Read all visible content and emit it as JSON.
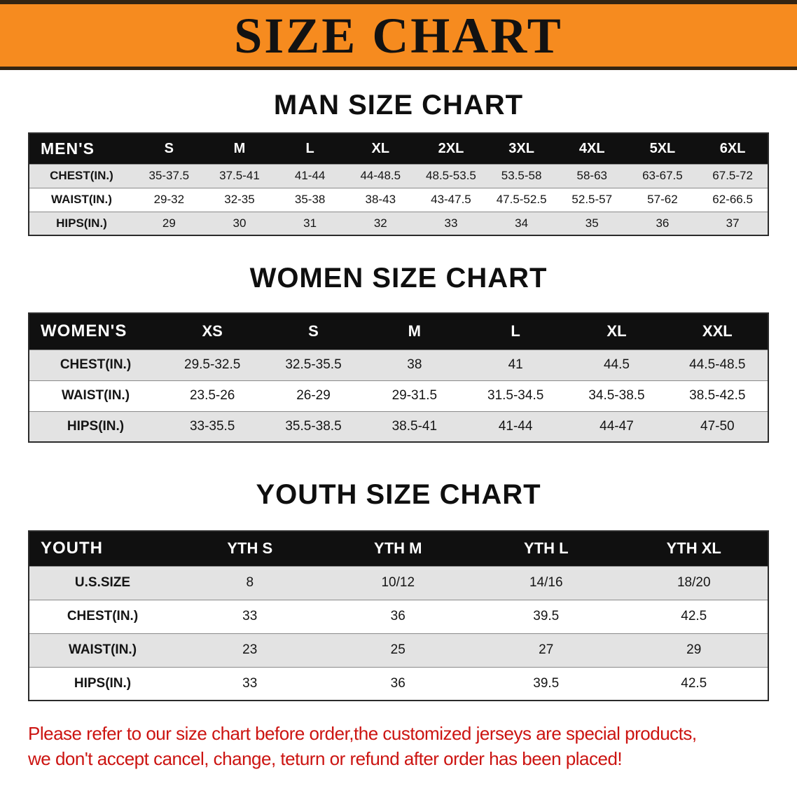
{
  "banner": {
    "title": "SIZE CHART"
  },
  "colors": {
    "banner_bg": "#f68b1f",
    "banner_border": "#332412",
    "table_header_bg": "#101010",
    "row_stripe": "#e3e3e3",
    "disclaimer_text": "#cc1411"
  },
  "sections": [
    {
      "heading": "MAN SIZE CHART",
      "table": {
        "header": [
          "MEN'S",
          "S",
          "M",
          "L",
          "XL",
          "2XL",
          "3XL",
          "4XL",
          "5XL",
          "6XL"
        ],
        "rows": [
          [
            "CHEST(IN.)",
            "35-37.5",
            "37.5-41",
            "41-44",
            "44-48.5",
            "48.5-53.5",
            "53.5-58",
            "58-63",
            "63-67.5",
            "67.5-72"
          ],
          [
            "WAIST(IN.)",
            "29-32",
            "32-35",
            "35-38",
            "38-43",
            "43-47.5",
            "47.5-52.5",
            "52.5-57",
            "57-62",
            "62-66.5"
          ],
          [
            "HIPS(IN.)",
            "29",
            "30",
            "31",
            "32",
            "33",
            "34",
            "35",
            "36",
            "37"
          ]
        ]
      }
    },
    {
      "heading": "WOMEN SIZE CHART",
      "table": {
        "header": [
          "WOMEN'S",
          "XS",
          "S",
          "M",
          "L",
          "XL",
          "XXL"
        ],
        "rows": [
          [
            "CHEST(IN.)",
            "29.5-32.5",
            "32.5-35.5",
            "38",
            "41",
            "44.5",
            "44.5-48.5"
          ],
          [
            "WAIST(IN.)",
            "23.5-26",
            "26-29",
            "29-31.5",
            "31.5-34.5",
            "34.5-38.5",
            "38.5-42.5"
          ],
          [
            "HIPS(IN.)",
            "33-35.5",
            "35.5-38.5",
            "38.5-41",
            "41-44",
            "44-47",
            "47-50"
          ]
        ]
      }
    },
    {
      "heading": "YOUTH SIZE CHART",
      "table": {
        "header": [
          "YOUTH",
          "YTH S",
          "YTH M",
          "YTH L",
          "YTH XL"
        ],
        "rows": [
          [
            "U.S.SIZE",
            "8",
            "10/12",
            "14/16",
            "18/20"
          ],
          [
            "CHEST(IN.)",
            "33",
            "36",
            "39.5",
            "42.5"
          ],
          [
            "WAIST(IN.)",
            "23",
            "25",
            "27",
            "29"
          ],
          [
            "HIPS(IN.)",
            "33",
            "36",
            "39.5",
            "42.5"
          ]
        ]
      }
    }
  ],
  "footer": {
    "line1": "Please refer to our size chart before order,the customized jerseys are special products,",
    "line2": "we don't accept cancel, change, teturn or refund after order has been placed!"
  }
}
